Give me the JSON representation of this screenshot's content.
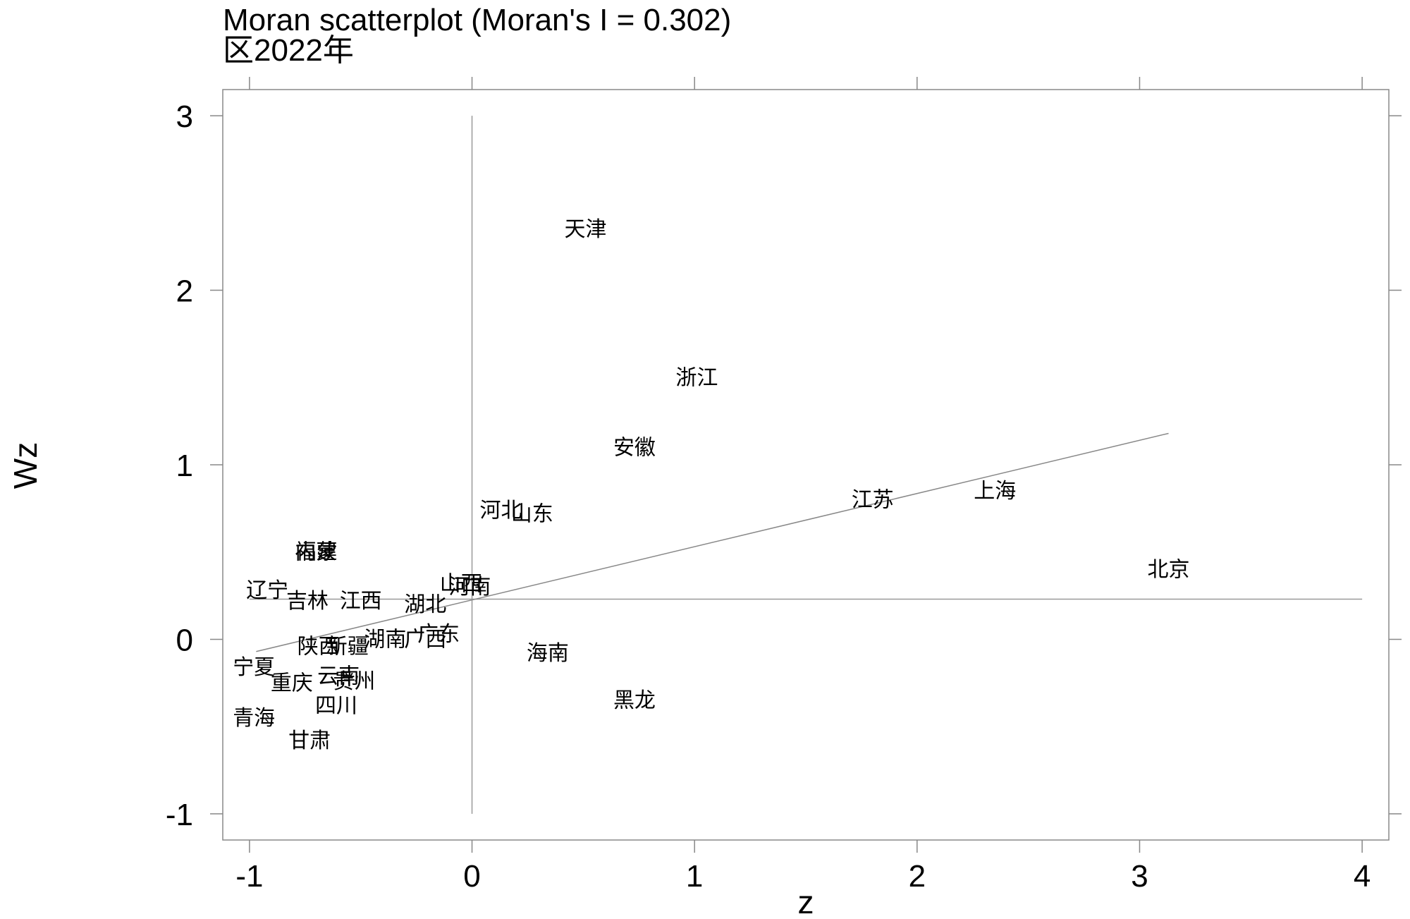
{
  "chart_data": {
    "type": "scatter",
    "title": "Moran scatterplot (Moran's I = 0.302)",
    "subtitle": "区2022年",
    "xlabel": "z",
    "ylabel": "Wz",
    "xlim": [
      -1.12,
      4.12
    ],
    "ylim": [
      -1.15,
      3.15
    ],
    "xticks": [
      "-1",
      "0",
      "1",
      "2",
      "3",
      "4"
    ],
    "yticks": [
      "-1",
      "0",
      "1",
      "2",
      "3"
    ],
    "grid": false,
    "mean_line_y": 0.23,
    "mean_line_x": 0,
    "regression": {
      "x": [
        -0.97,
        3.13
      ],
      "y": [
        -0.07,
        1.18
      ]
    },
    "points": [
      {
        "label": "天津",
        "x": 0.51,
        "y": 2.35
      },
      {
        "label": "浙江",
        "x": 1.01,
        "y": 1.5
      },
      {
        "label": "安徽",
        "x": 0.73,
        "y": 1.1
      },
      {
        "label": "江苏",
        "x": 1.8,
        "y": 0.8
      },
      {
        "label": "上海",
        "x": 2.35,
        "y": 0.85
      },
      {
        "label": "河北",
        "x": 0.13,
        "y": 0.74
      },
      {
        "label": "山东",
        "x": 0.27,
        "y": 0.72
      },
      {
        "label": "北京",
        "x": 3.13,
        "y": 0.4
      },
      {
        "label": "福建",
        "x": -0.7,
        "y": 0.5
      },
      {
        "label": "内蒙",
        "x": -0.7,
        "y": 0.5
      },
      {
        "label": "辽宁",
        "x": -0.92,
        "y": 0.28
      },
      {
        "label": "吉林",
        "x": -0.74,
        "y": 0.22
      },
      {
        "label": "江西",
        "x": -0.5,
        "y": 0.22
      },
      {
        "label": "湖北",
        "x": -0.21,
        "y": 0.2
      },
      {
        "label": "山西",
        "x": -0.05,
        "y": 0.32
      },
      {
        "label": "河南",
        "x": -0.01,
        "y": 0.3
      },
      {
        "label": "湖南",
        "x": -0.39,
        "y": 0.0
      },
      {
        "label": "广西",
        "x": -0.21,
        "y": 0.0
      },
      {
        "label": "广东",
        "x": -0.15,
        "y": 0.03
      },
      {
        "label": "陕西",
        "x": -0.69,
        "y": -0.04
      },
      {
        "label": "新疆",
        "x": -0.56,
        "y": -0.04
      },
      {
        "label": "宁夏",
        "x": -0.98,
        "y": -0.16
      },
      {
        "label": "云南",
        "x": -0.6,
        "y": -0.21
      },
      {
        "label": "贵州",
        "x": -0.53,
        "y": -0.24
      },
      {
        "label": "重庆",
        "x": -0.81,
        "y": -0.25
      },
      {
        "label": "四川",
        "x": -0.61,
        "y": -0.38
      },
      {
        "label": "青海",
        "x": -0.98,
        "y": -0.45
      },
      {
        "label": "甘肃",
        "x": -0.73,
        "y": -0.58
      },
      {
        "label": "海南",
        "x": 0.34,
        "y": -0.08
      },
      {
        "label": "黑龙",
        "x": 0.73,
        "y": -0.35
      }
    ]
  }
}
